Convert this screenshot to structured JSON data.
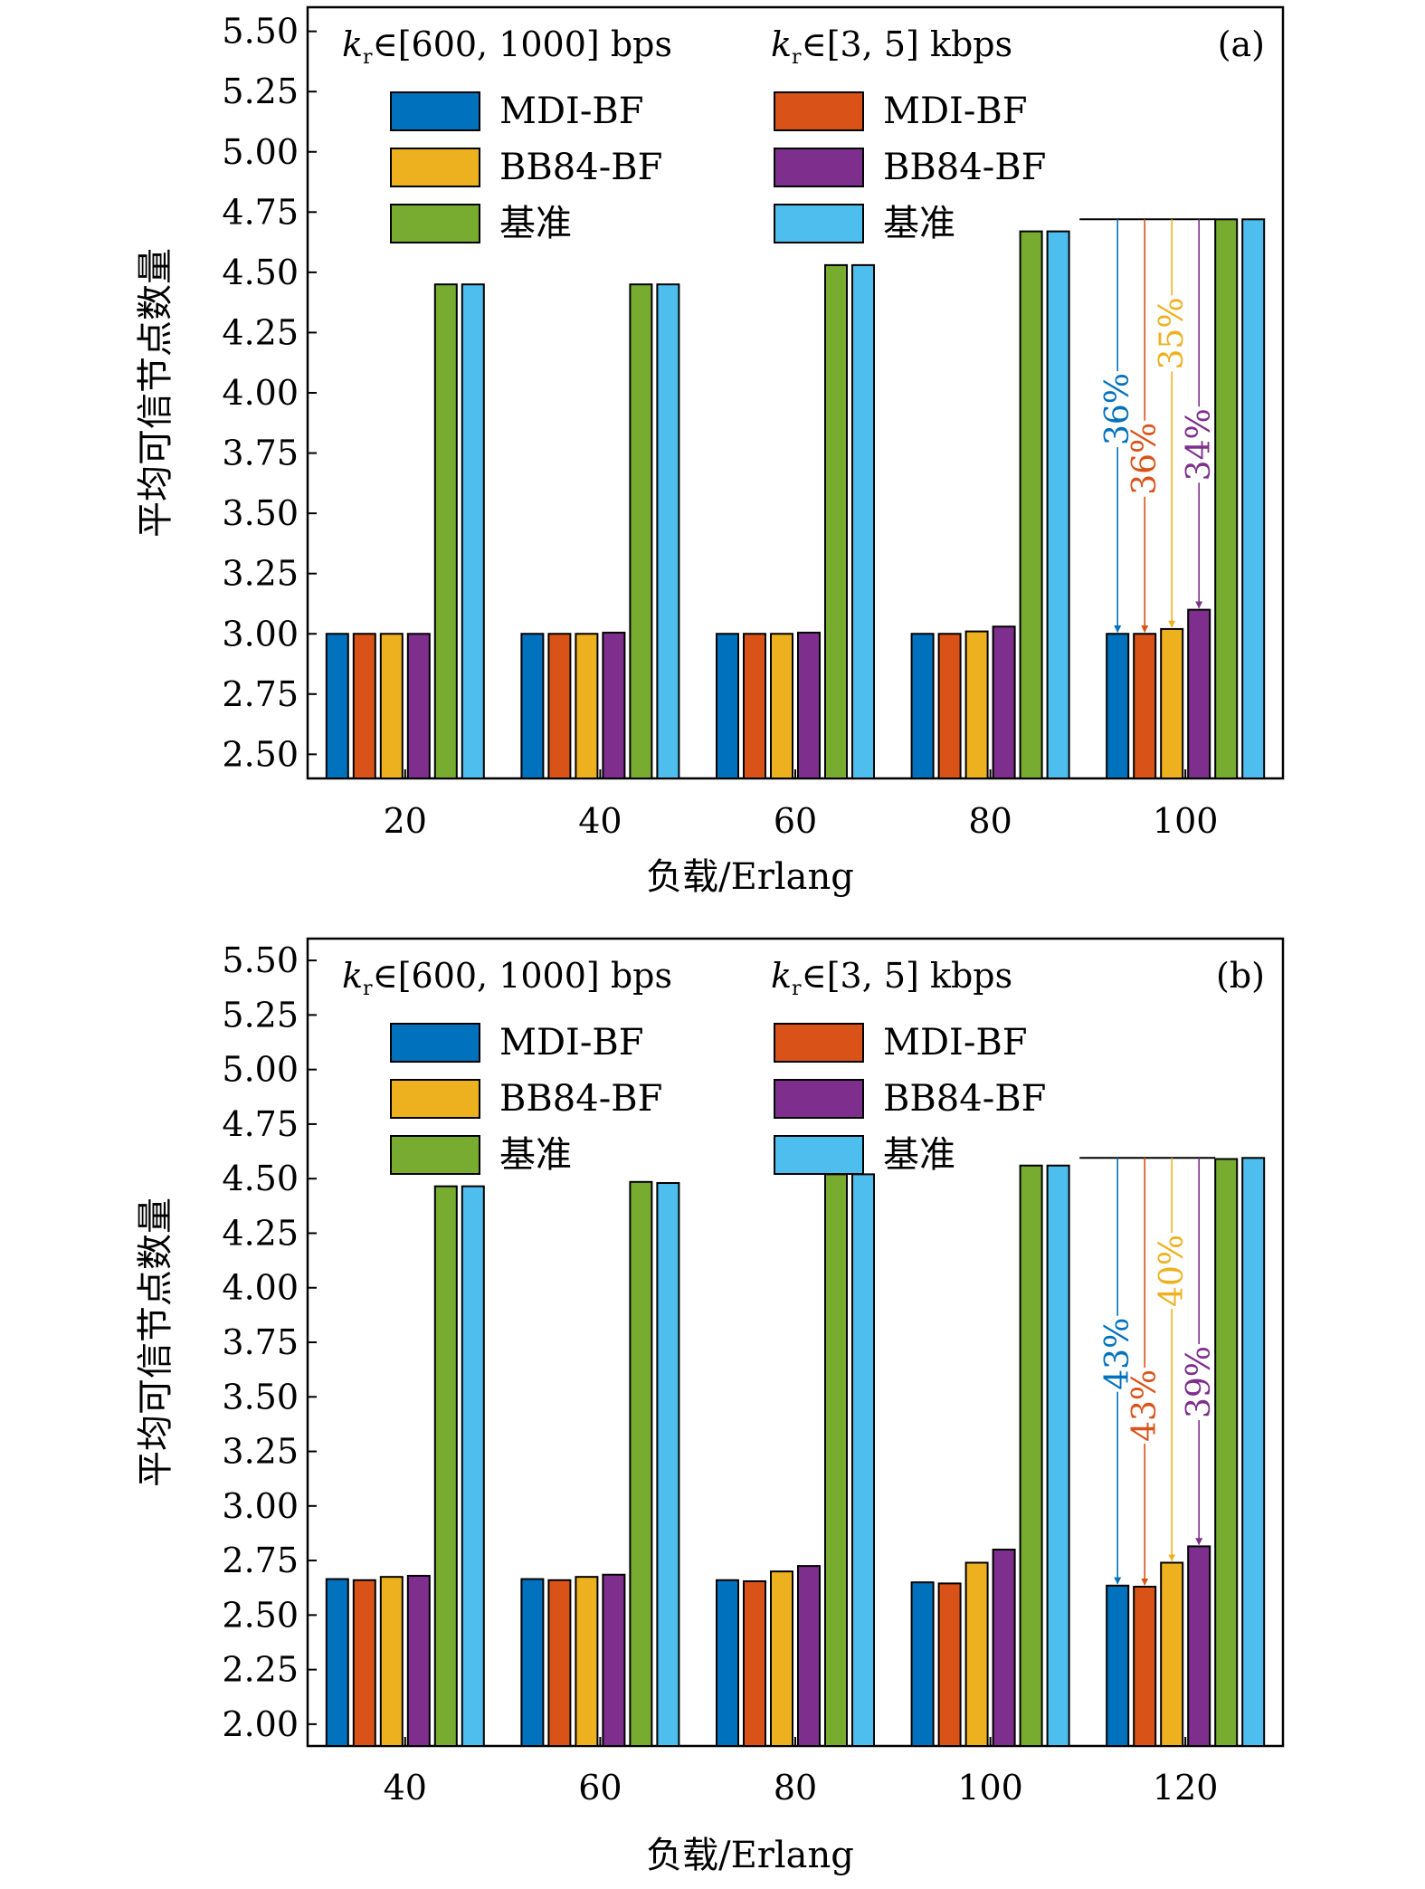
{
  "chart_data": [
    {
      "type": "bar",
      "panel_label": "(a)",
      "header_left": "k_r∈[600, 1000] bps",
      "header_right": "k_r∈[3, 5] kbps",
      "header_left_parts": {
        "k": "k",
        "sub": "r",
        "rest": "∈[600, 1000] bps"
      },
      "header_right_parts": {
        "k": "k",
        "sub": "r",
        "rest": "∈[3, 5] kbps"
      },
      "xlabel": "负载/Erlang",
      "ylabel": "平均可信节点数量",
      "ylim": [
        2.4,
        5.6
      ],
      "yticks": [
        "2.50",
        "2.75",
        "3.00",
        "3.25",
        "3.50",
        "3.75",
        "4.00",
        "4.25",
        "4.50",
        "4.75",
        "5.00",
        "5.25",
        "5.50"
      ],
      "categories": [
        "20",
        "40",
        "60",
        "80",
        "100"
      ],
      "series": [
        {
          "name": "MDI-BF",
          "group": "k_r∈[600, 1000] bps",
          "color": "#0072BD",
          "values": [
            3.0,
            3.0,
            3.0,
            3.0,
            3.0
          ]
        },
        {
          "name": "MDI-BF",
          "group": "k_r∈[3, 5] kbps",
          "color": "#D95319",
          "values": [
            3.0,
            3.0,
            3.0,
            3.0,
            3.0
          ]
        },
        {
          "name": "BB84-BF",
          "group": "k_r∈[600, 1000] bps",
          "color": "#EDB120",
          "values": [
            3.0,
            3.0,
            3.0,
            3.01,
            3.02
          ]
        },
        {
          "name": "BB84-BF",
          "group": "k_r∈[3, 5] kbps",
          "color": "#7E2F8E",
          "values": [
            3.0,
            3.005,
            3.005,
            3.03,
            3.1
          ]
        },
        {
          "name": "基准",
          "group": "k_r∈[600, 1000] bps",
          "color": "#77AC30",
          "values": [
            4.45,
            4.45,
            4.53,
            4.67,
            4.72
          ]
        },
        {
          "name": "基准",
          "group": "k_r∈[3, 5] kbps",
          "color": "#4DBEEE",
          "values": [
            4.45,
            4.45,
            4.53,
            4.67,
            4.72
          ]
        }
      ],
      "annotations": [
        {
          "text": "36%",
          "series_index": 0,
          "color": "#0072BD"
        },
        {
          "text": "36%",
          "series_index": 1,
          "color": "#D95319"
        },
        {
          "text": "35%",
          "series_index": 2,
          "color": "#EDB120"
        },
        {
          "text": "34%",
          "series_index": 3,
          "color": "#7E2F8E"
        }
      ]
    },
    {
      "type": "bar",
      "panel_label": "(b)",
      "header_left": "k_r∈[600, 1000] bps",
      "header_right": "k_r∈[3, 5] kbps",
      "header_left_parts": {
        "k": "k",
        "sub": "r",
        "rest": "∈[600, 1000] bps"
      },
      "header_right_parts": {
        "k": "k",
        "sub": "r",
        "rest": "∈[3, 5] kbps"
      },
      "xlabel": "负载/Erlang",
      "ylabel": "平均可信节点数量",
      "ylim": [
        1.9,
        5.6
      ],
      "yticks": [
        "2.00",
        "2.25",
        "2.50",
        "2.75",
        "3.00",
        "3.25",
        "3.50",
        "3.75",
        "4.00",
        "4.25",
        "4.50",
        "4.75",
        "5.00",
        "5.25",
        "5.50"
      ],
      "categories": [
        "40",
        "60",
        "80",
        "100",
        "120"
      ],
      "series": [
        {
          "name": "MDI-BF",
          "group": "k_r∈[600, 1000] bps",
          "color": "#0072BD",
          "values": [
            2.665,
            2.665,
            2.66,
            2.65,
            2.635
          ]
        },
        {
          "name": "MDI-BF",
          "group": "k_r∈[3, 5] kbps",
          "color": "#D95319",
          "values": [
            2.66,
            2.66,
            2.655,
            2.645,
            2.63
          ]
        },
        {
          "name": "BB84-BF",
          "group": "k_r∈[600, 1000] bps",
          "color": "#EDB120",
          "values": [
            2.675,
            2.675,
            2.7,
            2.74,
            2.74
          ]
        },
        {
          "name": "BB84-BF",
          "group": "k_r∈[3, 5] kbps",
          "color": "#7E2F8E",
          "values": [
            2.68,
            2.685,
            2.725,
            2.8,
            2.815
          ]
        },
        {
          "name": "基准",
          "group": "k_r∈[600, 1000] bps",
          "color": "#77AC30",
          "values": [
            4.465,
            4.485,
            4.52,
            4.56,
            4.59
          ]
        },
        {
          "name": "基准",
          "group": "k_r∈[3, 5] kbps",
          "color": "#4DBEEE",
          "values": [
            4.465,
            4.48,
            4.52,
            4.56,
            4.595
          ]
        }
      ],
      "annotations": [
        {
          "text": "43%",
          "series_index": 0,
          "color": "#0072BD"
        },
        {
          "text": "43%",
          "series_index": 1,
          "color": "#D95319"
        },
        {
          "text": "40%",
          "series_index": 2,
          "color": "#EDB120"
        },
        {
          "text": "39%",
          "series_index": 3,
          "color": "#7E2F8E"
        }
      ]
    }
  ]
}
